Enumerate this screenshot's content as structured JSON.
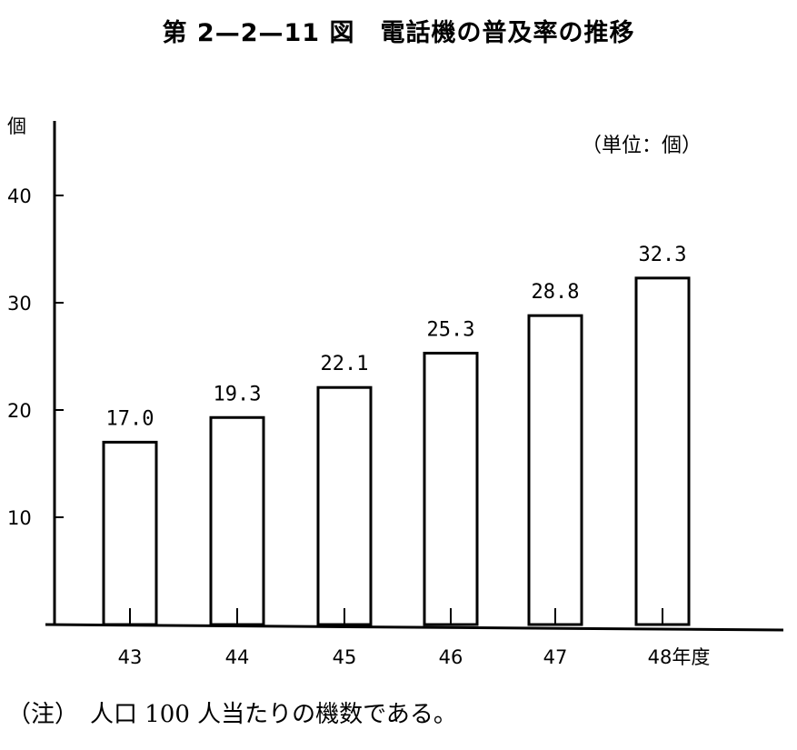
{
  "chart_data": {
    "type": "bar",
    "title": "第 2—2—11 図　電話機の普及率の推移",
    "unit_label": "（単位：個）",
    "ylabel": "個",
    "categories": [
      "43",
      "44",
      "45",
      "46",
      "47",
      "48年度"
    ],
    "values": [
      17.0,
      19.3,
      22.1,
      25.3,
      28.8,
      32.3
    ],
    "value_labels": [
      "17.0",
      "19.3",
      "22.1",
      "25.3",
      "28.8",
      "32.3"
    ],
    "yticks": [
      10,
      20,
      30,
      40
    ],
    "ylim": [
      0,
      47
    ],
    "grid": false,
    "legend": "none",
    "note": "（注）　人口 100 人当たりの機数である。"
  }
}
